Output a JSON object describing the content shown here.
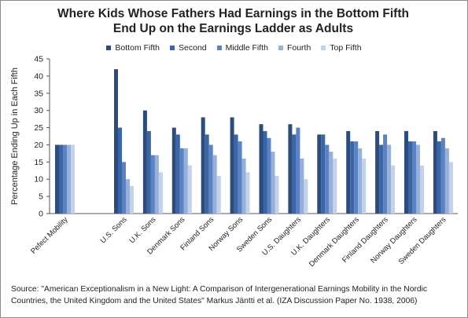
{
  "chart_data": {
    "type": "bar",
    "title_lines": [
      "Where Kids Whose Fathers Had Earnings in the Bottom Fifth",
      "End Up on the Earnings Ladder as Adults"
    ],
    "ylabel": "Percentage Ending Up in Each Fifth",
    "xlabel": "",
    "ylim": [
      0,
      45
    ],
    "yticks": [
      0,
      5,
      10,
      15,
      20,
      25,
      30,
      35,
      40,
      45
    ],
    "grid": false,
    "legend_position": "top",
    "categories": [
      "Pefect Mobility",
      "U.S. Sons",
      "U.K. Sons",
      "Denmark Sons",
      "Finland Sons",
      "Norway Sons",
      "Sweden Sons",
      "U.S. Daughters",
      "U.K. Daughters",
      "Denmark Daughters",
      "Finland Daughters",
      "Norway Daughters",
      "Sweden Daughters"
    ],
    "series": [
      {
        "name": "Bottom Fifth",
        "color": "#2b4c7e",
        "values": [
          20,
          42,
          30,
          25,
          28,
          28,
          26,
          26,
          23,
          24,
          24,
          24,
          24
        ]
      },
      {
        "name": "Second",
        "color": "#3a66a8",
        "values": [
          20,
          25,
          24,
          23,
          23,
          23,
          24,
          23,
          23,
          21,
          20,
          21,
          21
        ]
      },
      {
        "name": "Middle Fifth",
        "color": "#5b83c4",
        "values": [
          20,
          15,
          17,
          19,
          20,
          21,
          22,
          25,
          20,
          21,
          23,
          21,
          22
        ]
      },
      {
        "name": "Fourth",
        "color": "#98b0d8",
        "values": [
          20,
          10,
          17,
          19,
          17,
          16,
          18,
          16,
          18,
          19,
          20,
          20,
          19
        ]
      },
      {
        "name": "Top Fifth",
        "color": "#c3d1ea",
        "values": [
          20,
          8,
          12,
          14,
          11,
          12,
          11,
          10,
          16,
          16,
          14,
          14,
          15
        ]
      }
    ]
  },
  "source_text": "Source: \"American Exceptionalism in a New Light: A Comparison of Intergenerational Earnings Mobility in the Nordic Countries, the United Kingdom and the United States\" Markus Jäntti et al. (IZA Discussion Paper No. 1938, 2006)"
}
